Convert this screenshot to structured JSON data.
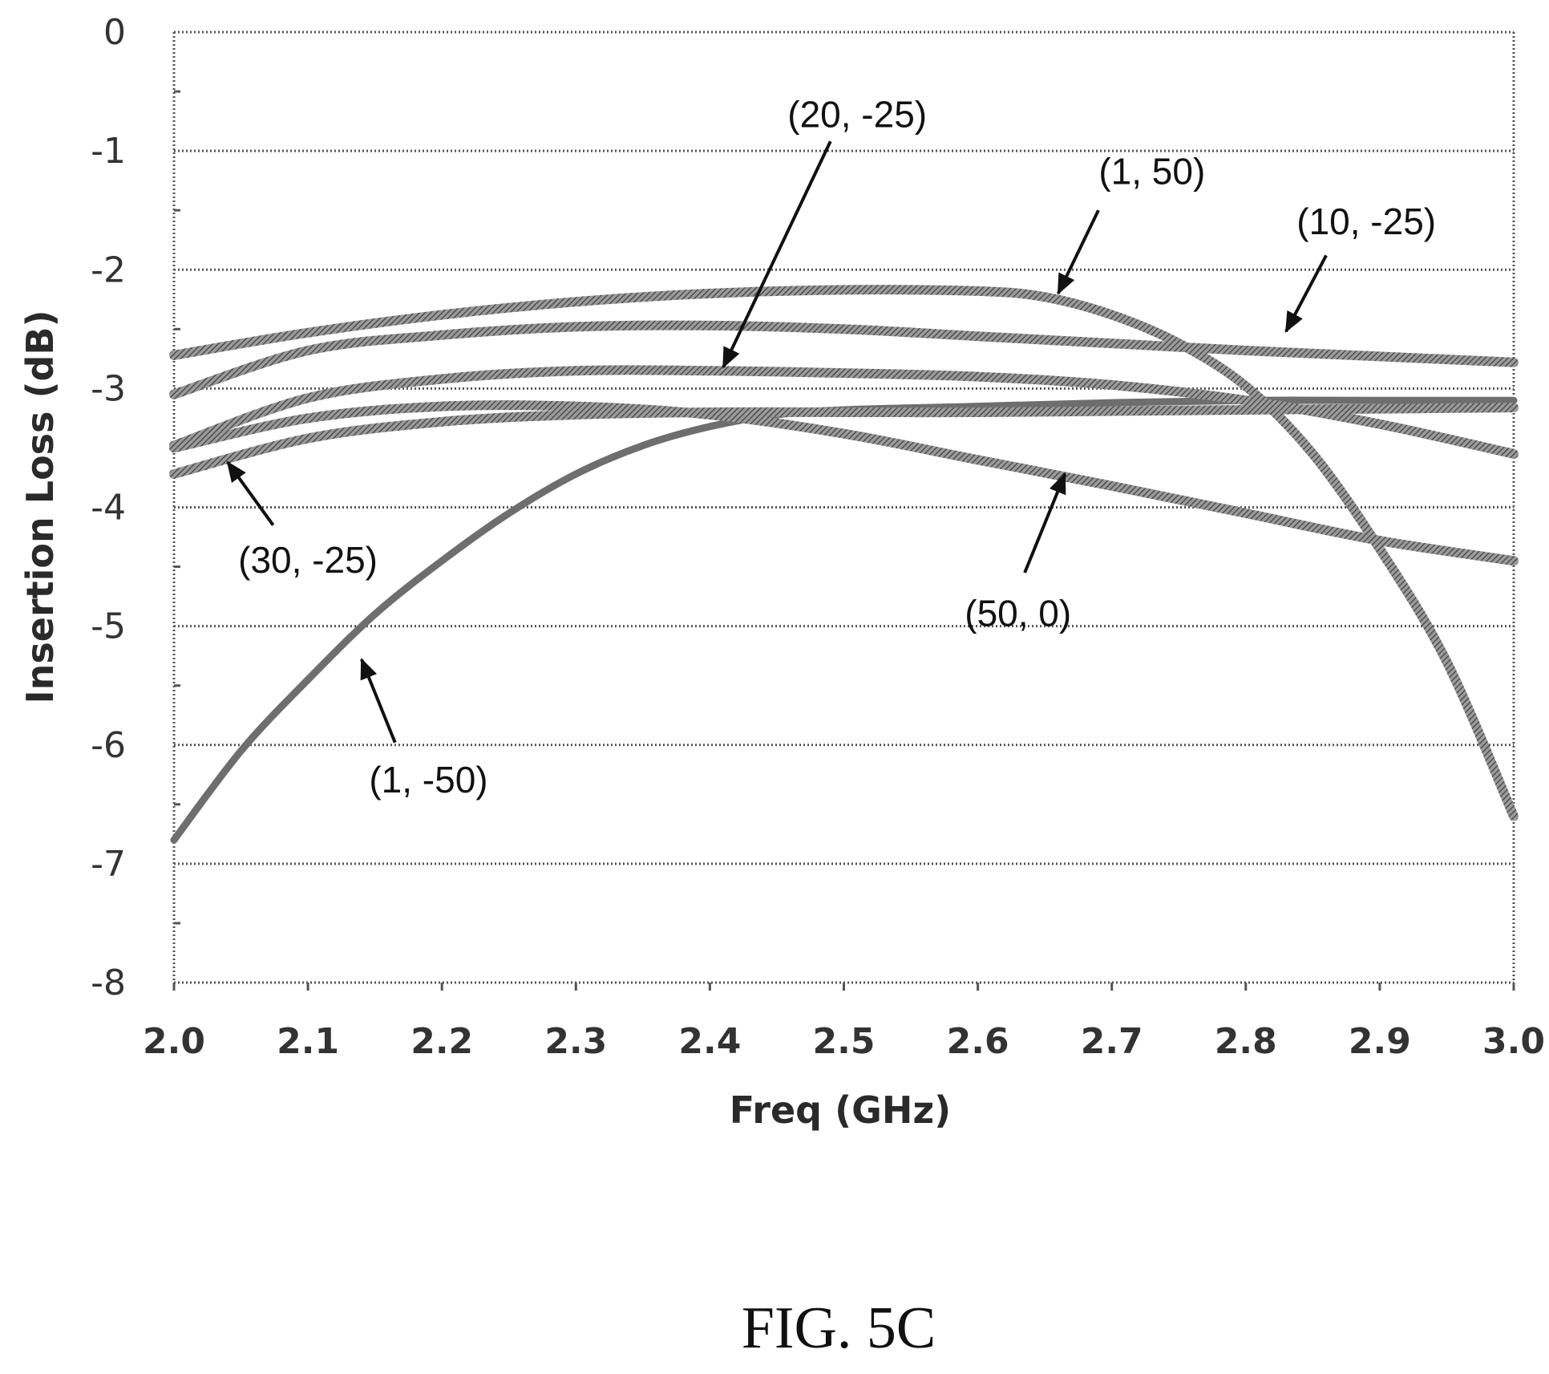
{
  "chart_data": {
    "type": "line",
    "xlabel": "Freq (GHz)",
    "ylabel": "Insertion Loss (dB)",
    "xlim": [
      2.0,
      3.0
    ],
    "ylim": [
      -8,
      0
    ],
    "x_ticks": [
      "2.0",
      "2.1",
      "2.2",
      "2.3",
      "2.4",
      "2.5",
      "2.6",
      "2.7",
      "2.8",
      "2.9",
      "3.0"
    ],
    "y_ticks": [
      "0",
      "-1",
      "-2",
      "-3",
      "-4",
      "-5",
      "-6",
      "-7",
      "-8"
    ],
    "grid": true,
    "caption": "FIG. 5C",
    "series": [
      {
        "name": "(1, -50)",
        "x": [
          2.0,
          2.05,
          2.1,
          2.15,
          2.2,
          2.25,
          2.3,
          2.35,
          2.4,
          2.45,
          2.5,
          2.6,
          2.7,
          2.8,
          2.9,
          3.0
        ],
        "y": [
          -6.8,
          -6.05,
          -5.45,
          -4.9,
          -4.45,
          -4.05,
          -3.72,
          -3.48,
          -3.32,
          -3.22,
          -3.18,
          -3.15,
          -3.12,
          -3.1,
          -3.1,
          -3.1
        ]
      },
      {
        "name": "(30, -25)",
        "x": [
          2.0,
          2.1,
          2.2,
          2.3,
          2.4,
          2.5,
          2.6,
          2.7,
          2.8,
          2.9,
          3.0
        ],
        "y": [
          -3.72,
          -3.42,
          -3.28,
          -3.22,
          -3.2,
          -3.2,
          -3.2,
          -3.19,
          -3.18,
          -3.17,
          -3.16
        ]
      },
      {
        "name": "(50, 0)",
        "x": [
          2.0,
          2.1,
          2.2,
          2.3,
          2.4,
          2.5,
          2.6,
          2.7,
          2.8,
          2.9,
          3.0
        ],
        "y": [
          -3.5,
          -3.25,
          -3.15,
          -3.15,
          -3.22,
          -3.38,
          -3.6,
          -3.82,
          -4.05,
          -4.28,
          -4.45
        ]
      },
      {
        "name": "(20, -25)",
        "x": [
          2.0,
          2.1,
          2.2,
          2.3,
          2.4,
          2.5,
          2.6,
          2.7,
          2.8,
          2.9,
          3.0
        ],
        "y": [
          -3.48,
          -3.08,
          -2.92,
          -2.85,
          -2.85,
          -2.87,
          -2.9,
          -2.97,
          -3.1,
          -3.3,
          -3.55
        ]
      },
      {
        "name": "(10, -25)",
        "x": [
          2.0,
          2.1,
          2.2,
          2.3,
          2.4,
          2.5,
          2.6,
          2.7,
          2.8,
          2.9,
          3.0
        ],
        "y": [
          -3.05,
          -2.68,
          -2.55,
          -2.48,
          -2.47,
          -2.5,
          -2.56,
          -2.62,
          -2.68,
          -2.73,
          -2.78
        ]
      },
      {
        "name": "(1, 50)",
        "x": [
          2.0,
          2.1,
          2.2,
          2.3,
          2.4,
          2.5,
          2.6,
          2.65,
          2.7,
          2.75,
          2.8,
          2.85,
          2.9,
          2.95,
          3.0
        ],
        "y": [
          -2.72,
          -2.53,
          -2.38,
          -2.27,
          -2.2,
          -2.17,
          -2.18,
          -2.23,
          -2.38,
          -2.62,
          -2.98,
          -3.55,
          -4.35,
          -5.3,
          -6.6
        ]
      }
    ],
    "annotations": [
      {
        "label": "(20, -25)",
        "text_x": 2.51,
        "text_y": -0.8,
        "tail": [
          2.49,
          -0.92
        ],
        "head": [
          2.41,
          -2.82
        ]
      },
      {
        "label": "(1, 50)",
        "text_x": 2.73,
        "text_y": -1.28,
        "tail": [
          2.69,
          -1.5
        ],
        "head": [
          2.66,
          -2.2
        ]
      },
      {
        "label": "(10, -25)",
        "text_x": 2.89,
        "text_y": -1.7,
        "tail": [
          2.86,
          -1.88
        ],
        "head": [
          2.83,
          -2.52
        ]
      },
      {
        "label": "(30, -25)",
        "text_x": 2.1,
        "text_y": -4.55,
        "tail": [
          2.074,
          -4.15
        ],
        "head": [
          2.04,
          -3.62
        ]
      },
      {
        "label": "(50, 0)",
        "text_x": 2.63,
        "text_y": -5.0,
        "tail": [
          2.635,
          -4.55
        ],
        "head": [
          2.665,
          -3.72
        ]
      },
      {
        "label": "(1, -50)",
        "text_x": 2.19,
        "text_y": -6.4,
        "tail": [
          2.165,
          -5.98
        ],
        "head": [
          2.14,
          -5.28
        ]
      }
    ]
  }
}
